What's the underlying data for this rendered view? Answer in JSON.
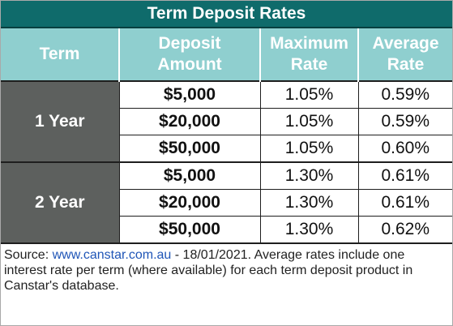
{
  "title": "Term Deposit Rates",
  "headers": {
    "term": "Term",
    "amount_line1": "Deposit",
    "amount_line2": "Amount",
    "max_line1": "Maximum",
    "max_line2": "Rate",
    "avg_line1": "Average",
    "avg_line2": "Rate"
  },
  "groups": [
    {
      "term": "1 Year",
      "rows": [
        {
          "amount": "$5,000",
          "max_rate": "1.05%",
          "avg_rate": "0.59%"
        },
        {
          "amount": "$20,000",
          "max_rate": "1.05%",
          "avg_rate": "0.59%"
        },
        {
          "amount": "$50,000",
          "max_rate": "1.05%",
          "avg_rate": "0.60%"
        }
      ]
    },
    {
      "term": "2 Year",
      "rows": [
        {
          "amount": "$5,000",
          "max_rate": "1.30%",
          "avg_rate": "0.61%"
        },
        {
          "amount": "$20,000",
          "max_rate": "1.30%",
          "avg_rate": "0.61%"
        },
        {
          "amount": "$50,000",
          "max_rate": "1.30%",
          "avg_rate": "0.62%"
        }
      ]
    }
  ],
  "source": {
    "prefix": "Source: ",
    "link": "www.canstar.com.au",
    "text": " - 18/01/2021. Average rates include one interest rate per term (where available) for each term deposit product in Canstar's database."
  },
  "colors": {
    "title_bg": "#0f6b6b",
    "header_bg": "#8fcfcf",
    "term_bg": "#5d605e",
    "link": "#1f55b7"
  }
}
